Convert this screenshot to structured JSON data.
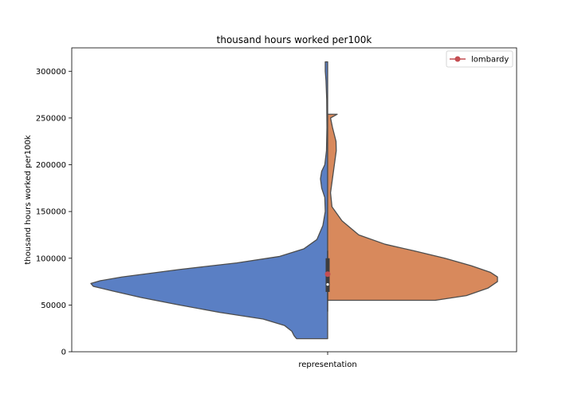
{
  "chart_data": {
    "type": "violin",
    "title": "thousand hours worked per100k",
    "xlabel": "",
    "ylabel": "thousand hours worked per100k",
    "categories": [
      "representation"
    ],
    "ylim": [
      0,
      325000
    ],
    "yticks": [
      0,
      50000,
      100000,
      150000,
      200000,
      250000,
      300000
    ],
    "grid": false,
    "legend": {
      "position": "top-right",
      "entries": [
        "lombardy"
      ]
    },
    "series": [
      {
        "side": "left",
        "color": "#5a7fc4",
        "range": [
          14000,
          310000
        ],
        "density": [
          [
            14000,
            0.13
          ],
          [
            17000,
            0.14
          ],
          [
            22000,
            0.15
          ],
          [
            28000,
            0.18
          ],
          [
            35000,
            0.27
          ],
          [
            42000,
            0.45
          ],
          [
            50000,
            0.62
          ],
          [
            58000,
            0.78
          ],
          [
            65000,
            0.9
          ],
          [
            70000,
            0.98
          ],
          [
            73000,
            0.99
          ],
          [
            76000,
            0.95
          ],
          [
            80000,
            0.86
          ],
          [
            88000,
            0.62
          ],
          [
            95000,
            0.38
          ],
          [
            102000,
            0.2
          ],
          [
            110000,
            0.1
          ],
          [
            120000,
            0.045
          ],
          [
            135000,
            0.02
          ],
          [
            150000,
            0.01
          ],
          [
            165000,
            0.012
          ],
          [
            175000,
            0.025
          ],
          [
            185000,
            0.03
          ],
          [
            193000,
            0.025
          ],
          [
            200000,
            0.012
          ],
          [
            215000,
            0.005
          ],
          [
            240000,
            0.003
          ],
          [
            270000,
            0.004
          ],
          [
            290000,
            0.007
          ],
          [
            300000,
            0.01
          ],
          [
            310000,
            0.01
          ]
        ]
      },
      {
        "side": "right",
        "color": "#d8895c",
        "range": [
          55000,
          254000
        ],
        "density": [
          [
            55000,
            0.45
          ],
          [
            60000,
            0.58
          ],
          [
            68000,
            0.67
          ],
          [
            75000,
            0.71
          ],
          [
            80000,
            0.71
          ],
          [
            85000,
            0.68
          ],
          [
            92000,
            0.6
          ],
          [
            100000,
            0.49
          ],
          [
            108000,
            0.36
          ],
          [
            115000,
            0.24
          ],
          [
            125000,
            0.13
          ],
          [
            140000,
            0.06
          ],
          [
            155000,
            0.018
          ],
          [
            170000,
            0.012
          ],
          [
            185000,
            0.02
          ],
          [
            200000,
            0.028
          ],
          [
            215000,
            0.036
          ],
          [
            225000,
            0.035
          ],
          [
            240000,
            0.02
          ],
          [
            250000,
            0.012
          ],
          [
            254000,
            0.04
          ]
        ]
      }
    ],
    "points": [
      {
        "series": "lombardy",
        "x": "representation",
        "y": 83000,
        "color": "#c44e52"
      }
    ],
    "box": {
      "q1": 64000,
      "median": 72000,
      "q3": 100000,
      "whisker_low": 43000,
      "whisker_high": 108000
    }
  }
}
